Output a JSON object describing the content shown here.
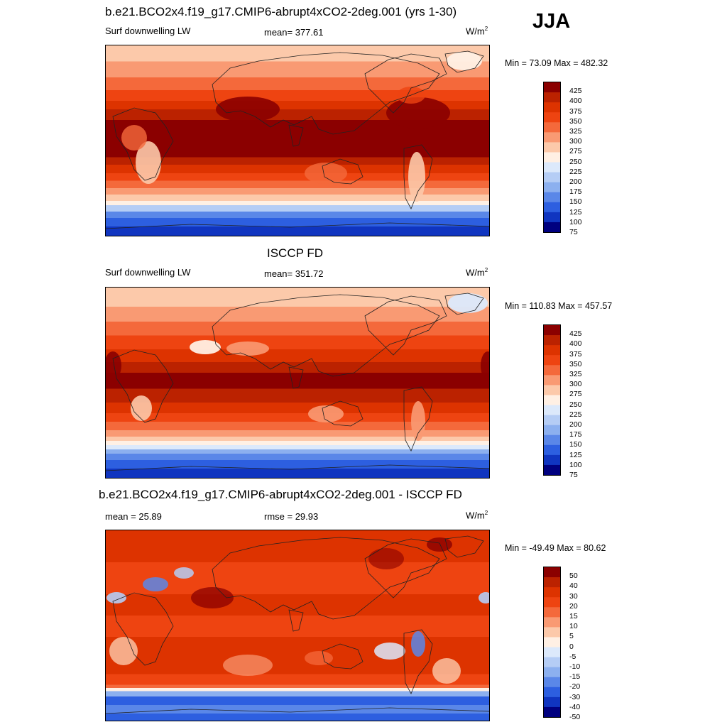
{
  "season": "JJA",
  "panels": [
    {
      "title": "b.e21.BCO2x4.f19_g17.CMIP6-abrupt4xCO2-2deg.001 (yrs 1-30)",
      "left_label": "Surf downwelling LW",
      "center_label": "mean= 377.61",
      "units": "W/m",
      "units_sup": "2",
      "minmax": "Min =  73.09 Max = 482.32",
      "colorbar_labels": [
        "425",
        "400",
        "375",
        "350",
        "325",
        "300",
        "275",
        "250",
        "225",
        "200",
        "175",
        "150",
        "125",
        "100",
        "75"
      ],
      "colorbar_colors": [
        "#8b0000",
        "#bb2200",
        "#dd3300",
        "#ee4411",
        "#f4693b",
        "#f99a73",
        "#fcc9aa",
        "#fff0e4",
        "#dce9fb",
        "#b5cdf5",
        "#8cb0ef",
        "#5a87e8",
        "#2d5fe0",
        "#1035c0",
        "#00007f"
      ],
      "zones": [
        {
          "lat": 90,
          "color": "#fcc9aa"
        },
        {
          "lat": 75,
          "color": "#f99a73"
        },
        {
          "lat": 60,
          "color": "#f4693b"
        },
        {
          "lat": 48,
          "color": "#ee4411"
        },
        {
          "lat": 38,
          "color": "#dd3300"
        },
        {
          "lat": 30,
          "color": "#bb2200"
        },
        {
          "lat": 20,
          "color": "#8b0000"
        },
        {
          "lat": -15,
          "color": "#bb2200"
        },
        {
          "lat": -22,
          "color": "#dd3300"
        },
        {
          "lat": -30,
          "color": "#ee4411"
        },
        {
          "lat": -37,
          "color": "#f4693b"
        },
        {
          "lat": -44,
          "color": "#f99a73"
        },
        {
          "lat": -50,
          "color": "#fcc9aa"
        },
        {
          "lat": -56,
          "color": "#fff0e4"
        },
        {
          "lat": -60,
          "color": "#b5cdf5"
        },
        {
          "lat": -66,
          "color": "#5a87e8"
        },
        {
          "lat": -72,
          "color": "#2d5fe0"
        },
        {
          "lat": -80,
          "color": "#1035c0"
        }
      ]
    },
    {
      "title": "ISCCP FD",
      "left_label": "Surf downwelling LW",
      "center_label": "mean= 351.72",
      "units": "W/m",
      "units_sup": "2",
      "minmax": "Min = 110.83 Max = 457.57",
      "colorbar_labels": [
        "425",
        "400",
        "375",
        "350",
        "325",
        "300",
        "275",
        "250",
        "225",
        "200",
        "175",
        "150",
        "125",
        "100",
        "75"
      ],
      "colorbar_colors": [
        "#8b0000",
        "#bb2200",
        "#dd3300",
        "#ee4411",
        "#f4693b",
        "#f99a73",
        "#fcc9aa",
        "#fff0e4",
        "#dce9fb",
        "#b5cdf5",
        "#8cb0ef",
        "#5a87e8",
        "#2d5fe0",
        "#1035c0",
        "#00007f"
      ],
      "zones": [
        {
          "lat": 90,
          "color": "#fcc9aa"
        },
        {
          "lat": 72,
          "color": "#f99a73"
        },
        {
          "lat": 58,
          "color": "#f4693b"
        },
        {
          "lat": 45,
          "color": "#ee4411"
        },
        {
          "lat": 32,
          "color": "#dd3300"
        },
        {
          "lat": 20,
          "color": "#bb2200"
        },
        {
          "lat": 10,
          "color": "#8b0000"
        },
        {
          "lat": -5,
          "color": "#bb2200"
        },
        {
          "lat": -18,
          "color": "#dd3300"
        },
        {
          "lat": -28,
          "color": "#ee4411"
        },
        {
          "lat": -36,
          "color": "#f4693b"
        },
        {
          "lat": -44,
          "color": "#f99a73"
        },
        {
          "lat": -50,
          "color": "#fcc9aa"
        },
        {
          "lat": -54,
          "color": "#fff0e4"
        },
        {
          "lat": -58,
          "color": "#dce9fb"
        },
        {
          "lat": -62,
          "color": "#8cb0ef"
        },
        {
          "lat": -66,
          "color": "#5a87e8"
        },
        {
          "lat": -72,
          "color": "#2d5fe0"
        },
        {
          "lat": -80,
          "color": "#1035c0"
        }
      ]
    },
    {
      "title": "b.e21.BCO2x4.f19_g17.CMIP6-abrupt4xCO2-2deg.001 - ISCCP FD",
      "left_label": "mean =  25.89",
      "center_label": "rmse =  29.93",
      "units": "W/m",
      "units_sup": "2",
      "minmax": "Min = -49.49 Max =  80.62",
      "colorbar_labels": [
        "50",
        "40",
        "30",
        "20",
        "15",
        "10",
        "5",
        "0",
        "-5",
        "-10",
        "-15",
        "-20",
        "-30",
        "-40",
        "-50"
      ],
      "colorbar_colors": [
        "#8b0000",
        "#bb2200",
        "#dd3300",
        "#ee4411",
        "#f4693b",
        "#f99a73",
        "#fcc9aa",
        "#fff0e4",
        "#dce9fb",
        "#b5cdf5",
        "#8cb0ef",
        "#5a87e8",
        "#2d5fe0",
        "#1035c0",
        "#00007f"
      ],
      "zones": [
        {
          "lat": 90,
          "color": "#dd3300"
        },
        {
          "lat": 60,
          "color": "#ee4411"
        },
        {
          "lat": 30,
          "color": "#dd3300"
        },
        {
          "lat": 10,
          "color": "#ee4411"
        },
        {
          "lat": -10,
          "color": "#dd3300"
        },
        {
          "lat": -45,
          "color": "#ee4411"
        },
        {
          "lat": -55,
          "color": "#f4693b"
        },
        {
          "lat": -58,
          "color": "#fff0e4"
        },
        {
          "lat": -61,
          "color": "#8cb0ef"
        },
        {
          "lat": -66,
          "color": "#2d5fe0"
        },
        {
          "lat": -74,
          "color": "#5a87e8"
        },
        {
          "lat": -82,
          "color": "#2d5fe0"
        }
      ]
    }
  ]
}
